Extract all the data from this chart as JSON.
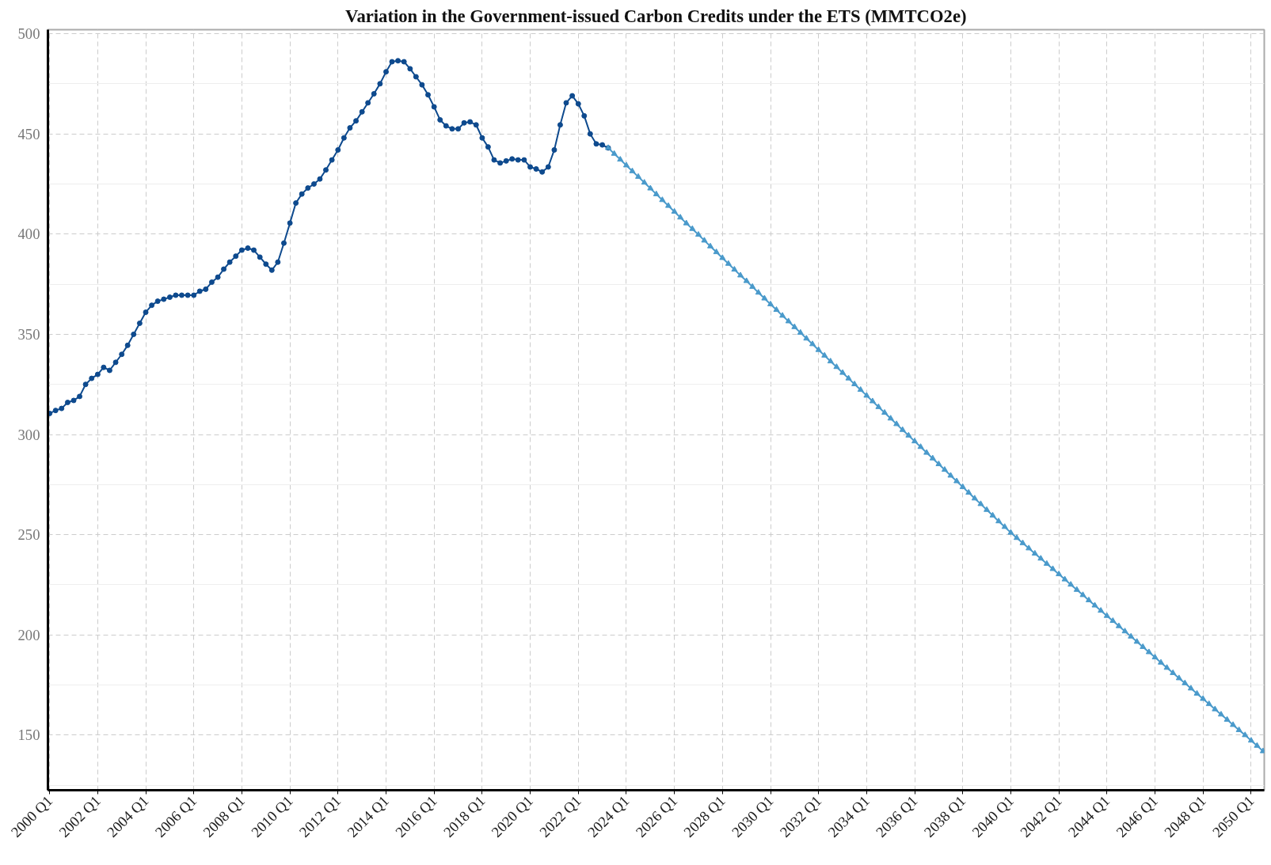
{
  "chart_data": {
    "type": "line",
    "title": "Variation in the Government-issued Carbon Credits under the ETS (MMTCO2e)",
    "xlim": [
      "1999-12-06",
      "2050-07-20"
    ],
    "ylim": [
      122.5,
      502
    ],
    "xticks": [
      {
        "value": "2000-01",
        "label": "2000 Q1"
      },
      {
        "value": "2002-01",
        "label": "2002 Q1"
      },
      {
        "value": "2004-01",
        "label": "2004 Q1"
      },
      {
        "value": "2006-01",
        "label": "2006 Q1"
      },
      {
        "value": "2008-01",
        "label": "2008 Q1"
      },
      {
        "value": "2010-01",
        "label": "2010 Q1"
      },
      {
        "value": "2012-01",
        "label": "2012 Q1"
      },
      {
        "value": "2014-01",
        "label": "2014 Q1"
      },
      {
        "value": "2016-01",
        "label": "2016 Q1"
      },
      {
        "value": "2018-01",
        "label": "2018 Q1"
      },
      {
        "value": "2020-01",
        "label": "2020 Q1"
      },
      {
        "value": "2022-01",
        "label": "2022 Q1"
      },
      {
        "value": "2024-01",
        "label": "2024 Q1"
      },
      {
        "value": "2026-01",
        "label": "2026 Q1"
      },
      {
        "value": "2028-01",
        "label": "2028 Q1"
      },
      {
        "value": "2030-01",
        "label": "2030 Q1"
      },
      {
        "value": "2032-01",
        "label": "2032 Q1"
      },
      {
        "value": "2034-01",
        "label": "2034 Q1"
      },
      {
        "value": "2036-01",
        "label": "2036 Q1"
      },
      {
        "value": "2038-01",
        "label": "2038 Q1"
      },
      {
        "value": "2040-01",
        "label": "2040 Q1"
      },
      {
        "value": "2042-01",
        "label": "2042 Q1"
      },
      {
        "value": "2044-01",
        "label": "2044 Q1"
      },
      {
        "value": "2046-01",
        "label": "2046 Q1"
      },
      {
        "value": "2048-01",
        "label": "2048 Q1"
      },
      {
        "value": "2050-01",
        "label": "2050 Q1"
      }
    ],
    "yticks": [
      150,
      200,
      250,
      300,
      350,
      400,
      450,
      500
    ],
    "grid": true,
    "line_style": "solid",
    "series": [
      {
        "color": "#0e4a8e",
        "marker": "circle",
        "x": [
          "2000-01",
          "2000-04",
          "2000-07",
          "2000-10",
          "2001-01",
          "2001-04",
          "2001-07",
          "2001-10",
          "2002-01",
          "2002-04",
          "2002-07",
          "2002-10",
          "2003-01",
          "2003-04",
          "2003-07",
          "2003-10",
          "2004-01",
          "2004-04",
          "2004-07",
          "2004-10",
          "2005-01",
          "2005-04",
          "2005-07",
          "2005-10",
          "2006-01",
          "2006-04",
          "2006-07",
          "2006-10",
          "2007-01",
          "2007-04",
          "2007-07",
          "2007-10",
          "2008-01",
          "2008-04",
          "2008-07",
          "2008-10",
          "2009-01",
          "2009-04",
          "2009-07",
          "2009-10",
          "2010-01",
          "2010-04",
          "2010-07",
          "2010-10",
          "2011-01",
          "2011-04",
          "2011-07",
          "2011-10",
          "2012-01",
          "2012-04",
          "2012-07",
          "2012-10",
          "2013-01",
          "2013-04",
          "2013-07",
          "2013-10",
          "2014-01",
          "2014-04",
          "2014-07",
          "2014-10",
          "2015-01",
          "2015-04",
          "2015-07",
          "2015-10",
          "2016-01",
          "2016-04",
          "2016-07",
          "2016-10",
          "2017-01",
          "2017-04",
          "2017-07",
          "2017-10",
          "2018-01",
          "2018-04",
          "2018-07",
          "2018-10",
          "2019-01",
          "2019-04",
          "2019-07",
          "2019-10",
          "2020-01",
          "2020-04",
          "2020-07",
          "2020-10",
          "2021-01",
          "2021-04",
          "2021-07",
          "2021-10",
          "2022-01",
          "2022-04",
          "2022-07",
          "2022-10",
          "2023-01",
          "2023-04"
        ],
        "values": [
          310.5,
          312,
          313,
          316,
          317,
          319,
          325,
          328,
          330,
          333.5,
          332,
          336,
          340,
          344.5,
          350,
          355.5,
          361,
          364.5,
          366.5,
          367.5,
          368.5,
          369.5,
          369.5,
          369.5,
          369.5,
          371.5,
          372.5,
          376,
          378.5,
          382.5,
          386,
          389,
          392,
          393,
          392,
          388.5,
          385,
          382,
          386,
          395.5,
          405.5,
          415.5,
          420,
          423,
          425,
          427.5,
          432,
          437,
          442,
          448,
          453,
          456.5,
          461,
          465.5,
          470,
          475,
          481,
          486,
          486.5,
          486,
          482.5,
          478.5,
          474.5,
          469.5,
          463.5,
          457,
          454,
          452.5,
          452.5,
          455.5,
          456,
          454.5,
          448,
          443.5,
          437,
          435.5,
          436.5,
          437.5,
          437,
          437,
          433.5,
          432.5,
          431,
          433.5,
          442,
          454.5,
          465.5,
          469,
          465,
          459,
          450,
          445,
          444.5,
          443
        ]
      },
      {
        "color": "#4a9acb",
        "marker": "triangle",
        "x": [
          "2023-04",
          "2023-07",
          "2023-10",
          "2024-01",
          "2024-04",
          "2024-07",
          "2024-10",
          "2025-01",
          "2025-04",
          "2025-07",
          "2025-10",
          "2026-01",
          "2026-04",
          "2026-07",
          "2026-10",
          "2027-01",
          "2027-04",
          "2027-07",
          "2027-10",
          "2028-01",
          "2028-04",
          "2028-07",
          "2028-10",
          "2029-01",
          "2029-04",
          "2029-07",
          "2029-10",
          "2030-01",
          "2030-04",
          "2030-07",
          "2030-10",
          "2031-01",
          "2031-04",
          "2031-07",
          "2031-10",
          "2032-01",
          "2032-04",
          "2032-07",
          "2032-10",
          "2033-01",
          "2033-04",
          "2033-07",
          "2033-10",
          "2034-01",
          "2034-04",
          "2034-07",
          "2034-10",
          "2035-01",
          "2035-04",
          "2035-07",
          "2035-10",
          "2036-01",
          "2036-04",
          "2036-07",
          "2036-10",
          "2037-01",
          "2037-04",
          "2037-07",
          "2037-10",
          "2038-01",
          "2038-04",
          "2038-07",
          "2038-10",
          "2039-01",
          "2039-04",
          "2039-07",
          "2039-10",
          "2040-01",
          "2040-04",
          "2040-07",
          "2040-10",
          "2041-01",
          "2041-04",
          "2041-07",
          "2041-10",
          "2042-01",
          "2042-04",
          "2042-07",
          "2042-10",
          "2043-01",
          "2043-04",
          "2043-07",
          "2043-10",
          "2044-01",
          "2044-04",
          "2044-07",
          "2044-10",
          "2045-01",
          "2045-04",
          "2045-07",
          "2045-10",
          "2046-01",
          "2046-04",
          "2046-07",
          "2046-10",
          "2047-01",
          "2047-04",
          "2047-07",
          "2047-10",
          "2048-01",
          "2048-04",
          "2048-07",
          "2048-10",
          "2049-01",
          "2049-04",
          "2049-07",
          "2049-10",
          "2050-01",
          "2050-04",
          "2050-07"
        ],
        "values": [
          443,
          440.1,
          437.2,
          434.3,
          431.4,
          428.6,
          425.7,
          422.8,
          419.9,
          417.0,
          414.1,
          411.2,
          408.3,
          405.4,
          402.6,
          399.7,
          396.8,
          393.9,
          391.0,
          388.1,
          385.2,
          382.3,
          379.4,
          376.6,
          373.7,
          370.8,
          367.9,
          365,
          362.2,
          359.3,
          356.5,
          353.6,
          350.8,
          347.9,
          345.1,
          342.2,
          339.4,
          336.5,
          333.7,
          330.8,
          328.0,
          325.1,
          322.3,
          319.4,
          316.6,
          313.7,
          310.9,
          308.0,
          305.2,
          302.3,
          299.5,
          296.6,
          293.8,
          290.9,
          288.1,
          285.2,
          282.4,
          279.5,
          276.7,
          273.8,
          271.0,
          268.1,
          265.3,
          262.4,
          259.6,
          256.7,
          253.9,
          251,
          248.4,
          245.8,
          243.2,
          240.6,
          238.1,
          235.5,
          232.9,
          230.3,
          227.7,
          225.1,
          222.5,
          219.9,
          217.3,
          214.7,
          212.1,
          209.5,
          207.0,
          204.4,
          201.8,
          199.2,
          196.6,
          194.0,
          191.4,
          188.8,
          186.2,
          183.6,
          181.0,
          178.4,
          175.9,
          173.3,
          170.7,
          168.1,
          165.5,
          162.9,
          160.3,
          157.7,
          155.1,
          152.5,
          150,
          147.3,
          144.7,
          142
        ]
      }
    ]
  }
}
